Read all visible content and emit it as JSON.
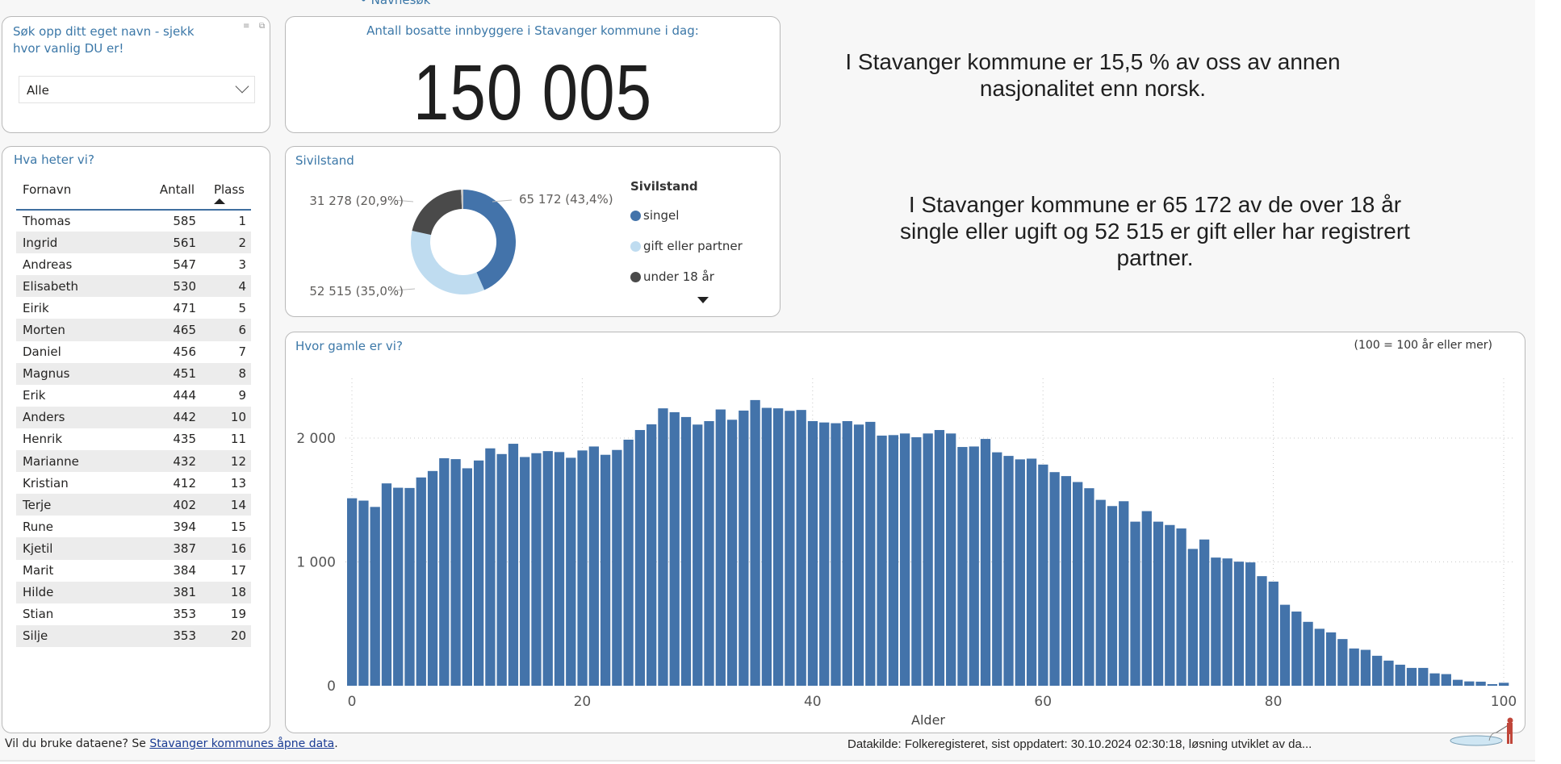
{
  "nav_link": "Navnesøk",
  "slicer": {
    "title": "Søk opp ditt eget navn - sjekk hvor vanlig DU er!",
    "selected": "Alle",
    "icons": [
      "filter-icon",
      "focus-mode-icon"
    ]
  },
  "population": {
    "title": "Antall bosatte innbyggere i Stavanger kommune i dag:",
    "value": "150 005"
  },
  "info_texts": [
    "I Stavanger kommune er 15,5 % av oss av annen nasjonalitet enn norsk.",
    "I Stavanger kommune er 65 172 av de over 18 år single eller ugift og 52 515 er gift eller har registrert partner."
  ],
  "names_table": {
    "title": "Hva heter vi?",
    "columns": [
      "Fornavn",
      "Antall",
      "Plass"
    ],
    "sorted_by": "Plass",
    "rows": [
      [
        "Thomas",
        "585",
        "1"
      ],
      [
        "Ingrid",
        "561",
        "2"
      ],
      [
        "Andreas",
        "547",
        "3"
      ],
      [
        "Elisabeth",
        "530",
        "4"
      ],
      [
        "Eirik",
        "471",
        "5"
      ],
      [
        "Morten",
        "465",
        "6"
      ],
      [
        "Daniel",
        "456",
        "7"
      ],
      [
        "Magnus",
        "451",
        "8"
      ],
      [
        "Erik",
        "444",
        "9"
      ],
      [
        "Anders",
        "442",
        "10"
      ],
      [
        "Henrik",
        "435",
        "11"
      ],
      [
        "Marianne",
        "432",
        "12"
      ],
      [
        "Kristian",
        "412",
        "13"
      ],
      [
        "Terje",
        "402",
        "14"
      ],
      [
        "Rune",
        "394",
        "15"
      ],
      [
        "Kjetil",
        "387",
        "16"
      ],
      [
        "Marit",
        "384",
        "17"
      ],
      [
        "Hilde",
        "381",
        "18"
      ],
      [
        "Stian",
        "353",
        "19"
      ],
      [
        "Silje",
        "353",
        "20"
      ]
    ]
  },
  "chart_data": [
    {
      "type": "pie",
      "title": "Sivilstand",
      "legend_title": "Sivilstand",
      "legend_position": "right",
      "slices": [
        {
          "name": "singel",
          "value": 65172,
          "label": "65 172 (43,4%)",
          "color": "#4373aa"
        },
        {
          "name": "gift eller partner",
          "value": 52515,
          "label": "52 515 (35,0%)",
          "color": "#bfdcf0"
        },
        {
          "name": "under 18 år",
          "value": 31278,
          "label": "31 278 (20,9%)",
          "color": "#4a4a4a"
        }
      ],
      "donut": true
    },
    {
      "type": "bar",
      "title": "Hvor gamle er vi?",
      "note": "(100 = 100 år eller mer)",
      "xlabel": "Alder",
      "ylabel": "",
      "x_ticks": [
        "0",
        "20",
        "40",
        "60",
        "80",
        "100"
      ],
      "y_ticks": [
        "0",
        "1 000",
        "2 000"
      ],
      "y_tick_values": [
        0,
        1000,
        2000
      ],
      "ylim": [
        0,
        2600
      ],
      "grid": true,
      "color": "#4373aa",
      "x": [
        0,
        1,
        2,
        3,
        4,
        5,
        6,
        7,
        8,
        9,
        10,
        11,
        12,
        13,
        14,
        15,
        16,
        17,
        18,
        19,
        20,
        21,
        22,
        23,
        24,
        25,
        26,
        27,
        28,
        29,
        30,
        31,
        32,
        33,
        34,
        35,
        36,
        37,
        38,
        39,
        40,
        41,
        42,
        43,
        44,
        45,
        46,
        47,
        48,
        49,
        50,
        51,
        52,
        53,
        54,
        55,
        56,
        57,
        58,
        59,
        60,
        61,
        62,
        63,
        64,
        65,
        66,
        67,
        68,
        69,
        70,
        71,
        72,
        73,
        74,
        75,
        76,
        77,
        78,
        79,
        80,
        81,
        82,
        83,
        84,
        85,
        86,
        87,
        88,
        89,
        90,
        91,
        92,
        93,
        94,
        95,
        96,
        97,
        98,
        99,
        100
      ],
      "values": [
        1514,
        1495,
        1444,
        1634,
        1599,
        1597,
        1682,
        1734,
        1837,
        1830,
        1756,
        1819,
        1917,
        1871,
        1954,
        1847,
        1878,
        1895,
        1887,
        1841,
        1900,
        1932,
        1865,
        1904,
        1987,
        2065,
        2111,
        2240,
        2209,
        2170,
        2109,
        2137,
        2231,
        2148,
        2222,
        2307,
        2244,
        2240,
        2220,
        2227,
        2137,
        2126,
        2120,
        2137,
        2109,
        2131,
        2020,
        2024,
        2037,
        2007,
        2037,
        2065,
        2037,
        1928,
        1932,
        1993,
        1885,
        1856,
        1828,
        1834,
        1786,
        1725,
        1693,
        1645,
        1595,
        1501,
        1451,
        1490,
        1325,
        1410,
        1325,
        1298,
        1270,
        1105,
        1181,
        1035,
        1028,
        1002,
        996,
        885,
        841,
        654,
        599,
        516,
        460,
        431,
        377,
        301,
        290,
        242,
        203,
        170,
        144,
        144,
        100,
        94,
        48,
        35,
        33,
        13,
        24
      ]
    }
  ],
  "footer": {
    "left_text": "Vil du bruke dataene? Se ",
    "left_link": "Stavanger kommunes åpne data",
    "left_end": ".",
    "right_text": "Datakilde: Folkeregisteret, sist oppdatert: 30.10.2024 02:30:18, løsning utviklet av da..."
  }
}
